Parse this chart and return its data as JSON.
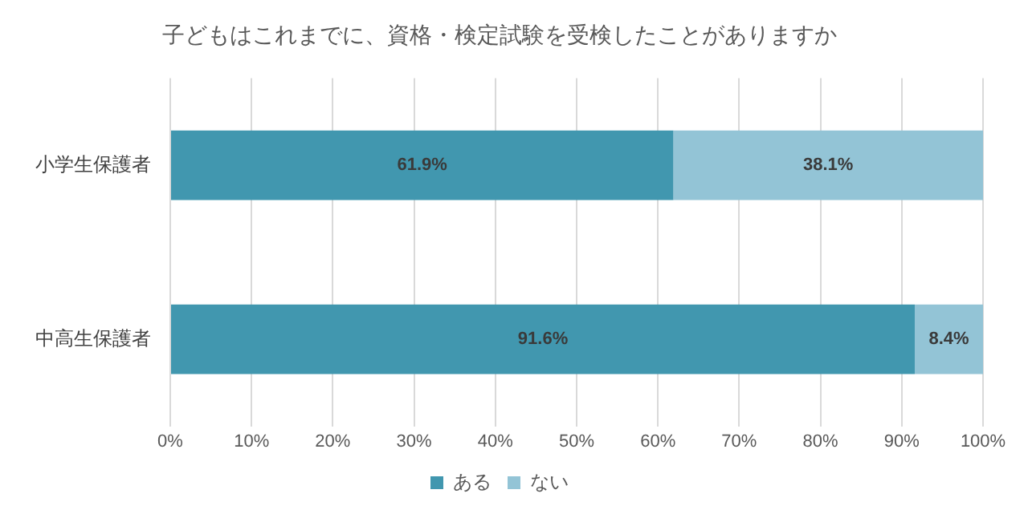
{
  "chart_data": {
    "type": "bar",
    "orientation": "horizontal",
    "stacked": true,
    "title": "子どもはこれまでに、資格・検定試験を受検したことがありますか",
    "categories": [
      "小学生保護者",
      "中高生保護者"
    ],
    "series": [
      {
        "name": "ある",
        "color": "#4197af",
        "values": [
          61.9,
          91.6
        ],
        "value_labels": [
          "61.9%",
          "91.6%"
        ]
      },
      {
        "name": "ない",
        "color": "#93c4d6",
        "values": [
          38.1,
          8.4
        ],
        "value_labels": [
          "38.1%",
          "8.4%"
        ]
      }
    ],
    "xlim": [
      0,
      100
    ],
    "xticks": [
      {
        "value": 0,
        "label": "0%"
      },
      {
        "value": 10,
        "label": "10%"
      },
      {
        "value": 20,
        "label": "20%"
      },
      {
        "value": 30,
        "label": "30%"
      },
      {
        "value": 40,
        "label": "40%"
      },
      {
        "value": 50,
        "label": "50%"
      },
      {
        "value": 60,
        "label": "60%"
      },
      {
        "value": 70,
        "label": "70%"
      },
      {
        "value": 80,
        "label": "80%"
      },
      {
        "value": 90,
        "label": "90%"
      },
      {
        "value": 100,
        "label": "100%"
      }
    ],
    "grid": "x",
    "legend": "bottom"
  }
}
